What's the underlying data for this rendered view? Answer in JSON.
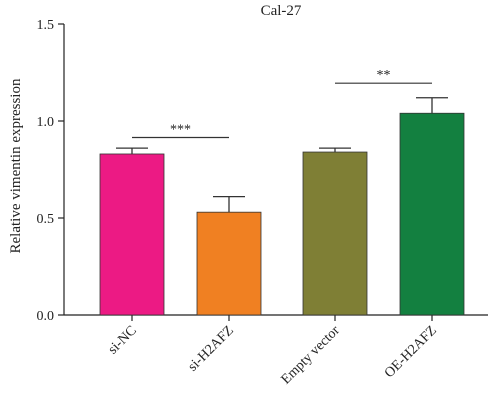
{
  "chart_data": {
    "type": "bar",
    "title": "Cal-27",
    "xlabel": "",
    "ylabel": "Relative vimentin expression",
    "ylim": [
      0,
      1.5
    ],
    "yticks": [
      "0.0",
      "0.5",
      "1.0",
      "1.5"
    ],
    "categories": [
      "si-NC",
      "si-H2AFZ",
      "Empty vector",
      "OE-H2AFZ"
    ],
    "values": [
      0.83,
      0.53,
      0.84,
      1.04
    ],
    "errors": [
      0.03,
      0.08,
      0.02,
      0.08
    ],
    "colors": [
      "#ec1a84",
      "#f08022",
      "#7f7f35",
      "#138040"
    ],
    "significance": [
      {
        "from": 0,
        "to": 1,
        "label": "***",
        "y": 0.915
      },
      {
        "from": 2,
        "to": 3,
        "label": "**",
        "y": 1.195
      }
    ],
    "grid": false,
    "legend": "none"
  }
}
